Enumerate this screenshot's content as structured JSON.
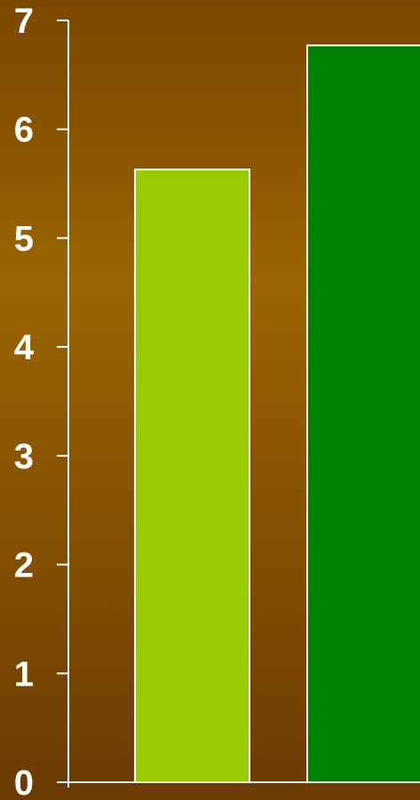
{
  "chart_data": {
    "type": "bar",
    "categories": [
      "",
      ""
    ],
    "values": [
      5.63,
      6.77
    ],
    "bar_colors": [
      "#99cc00",
      "#008000"
    ],
    "bar_outline_color": "#ffffff",
    "axis_color": "#ffffff",
    "title": "",
    "xlabel": "",
    "ylabel": "",
    "ylim": [
      0,
      7
    ],
    "yticks": [
      0,
      1,
      2,
      3,
      4,
      5,
      6,
      7
    ],
    "ytick_labels": [
      "0",
      "1",
      "2",
      "3",
      "4",
      "5",
      "6",
      "7"
    ],
    "grid": false,
    "legend": "none"
  }
}
